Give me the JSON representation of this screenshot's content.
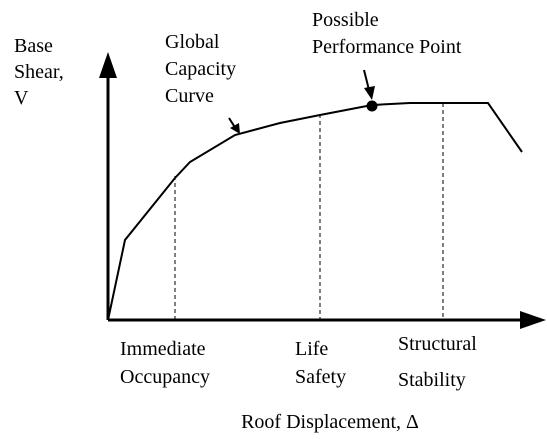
{
  "axes": {
    "y_label": [
      "Base",
      "Shear,",
      "V"
    ],
    "x_label": "Roof Displacement, Δ"
  },
  "curve_label": [
    "Global",
    "Capacity",
    "Curve"
  ],
  "point_label": [
    "Possible",
    "Performance Point"
  ],
  "levels": [
    {
      "lines": [
        "Immediate",
        "Occupancy"
      ]
    },
    {
      "lines": [
        "Life",
        "Safety"
      ]
    },
    {
      "lines": [
        "Structural",
        "Stability"
      ]
    }
  ]
}
